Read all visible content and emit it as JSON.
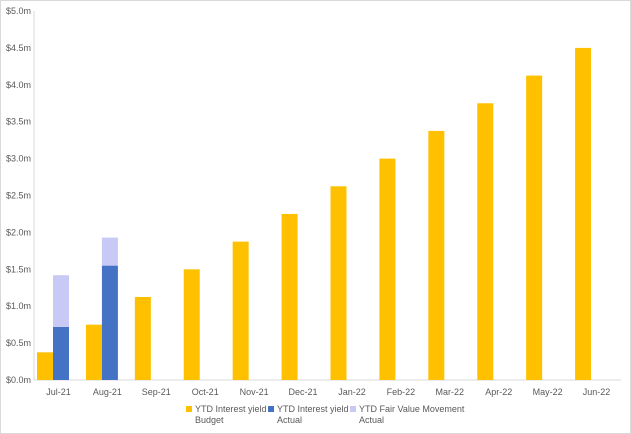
{
  "chart_data": {
    "type": "bar",
    "stacked_actual": true,
    "categories": [
      "Jul-21",
      "Aug-21",
      "Sep-21",
      "Oct-21",
      "Nov-21",
      "Dec-21",
      "Jan-22",
      "Feb-22",
      "Mar-22",
      "Apr-22",
      "May-22",
      "Jun-22"
    ],
    "series": [
      {
        "name": "YTD Interest yield Budget",
        "color": "#ffc000",
        "values": [
          0.375,
          0.75,
          1.125,
          1.5,
          1.875,
          2.25,
          2.625,
          3.0,
          3.375,
          3.75,
          4.125,
          4.5
        ]
      },
      {
        "name": "YTD Interest yield Actual",
        "color": "#4472c4",
        "values": [
          0.72,
          1.55,
          null,
          null,
          null,
          null,
          null,
          null,
          null,
          null,
          null,
          null
        ]
      },
      {
        "name": "YTD Fair Value Movement Actual",
        "color": "#c9c9f5",
        "values": [
          0.7,
          0.38,
          null,
          null,
          null,
          null,
          null,
          null,
          null,
          null,
          null,
          null
        ]
      }
    ],
    "y_ticks": [
      "$0.0m",
      "$0.5m",
      "$1.0m",
      "$1.5m",
      "$2.0m",
      "$2.5m",
      "$3.0m",
      "$3.5m",
      "$4.0m",
      "$4.5m",
      "$5.0m"
    ],
    "ylim": [
      0,
      5.0
    ],
    "grid": false,
    "legend": {
      "position": "bottom",
      "items": [
        {
          "line1": "YTD Interest yield",
          "line2": "Budget",
          "color": "#ffc000"
        },
        {
          "line1": "YTD Interest yield",
          "line2": "Actual",
          "color": "#4472c4"
        },
        {
          "line1": "YTD Fair Value Movement",
          "line2": "Actual",
          "color": "#c9c9f5"
        }
      ]
    }
  }
}
